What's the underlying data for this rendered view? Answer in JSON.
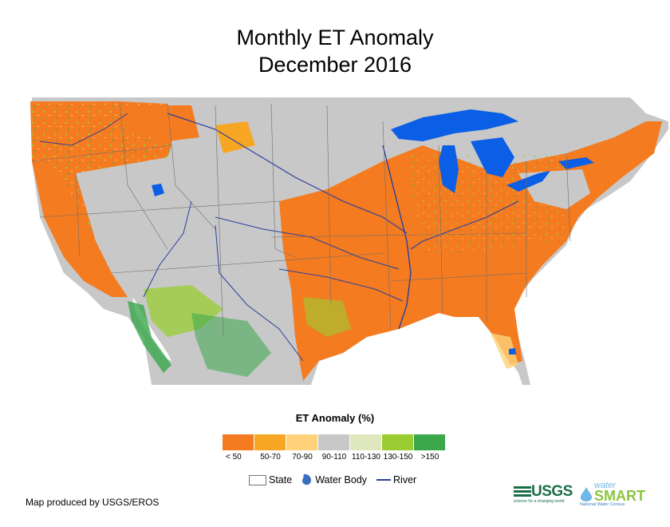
{
  "title": {
    "line1": "Monthly ET Anomaly",
    "line2": "December 2016"
  },
  "legend": {
    "title": "ET Anomaly (%)",
    "classes": [
      {
        "label": "< 50",
        "color": "#f47b20"
      },
      {
        "label": "50-70",
        "color": "#f6a623"
      },
      {
        "label": "70-90",
        "color": "#fdd27a"
      },
      {
        "label": "90-110",
        "color": "#c8c8c8"
      },
      {
        "label": "110-130",
        "color": "#dfe8bd"
      },
      {
        "label": "130-150",
        "color": "#9acd32"
      },
      {
        "label": ">150",
        "color": "#3aa74b"
      }
    ]
  },
  "reference": {
    "state": "State",
    "water_body": "Water Body",
    "river": "River"
  },
  "colors": {
    "land_background": "#c8c8c8",
    "water": "#0a5fe6",
    "river": "#2a3fa0",
    "border": "#6e6e6e"
  },
  "credit": "Map produced by USGS/EROS",
  "logos": {
    "usgs": "USGS",
    "usgs_tagline": "science for a changing world",
    "watersmart_top": "water",
    "watersmart_main": "SMART",
    "watersmart_sub": "National Water Census"
  }
}
